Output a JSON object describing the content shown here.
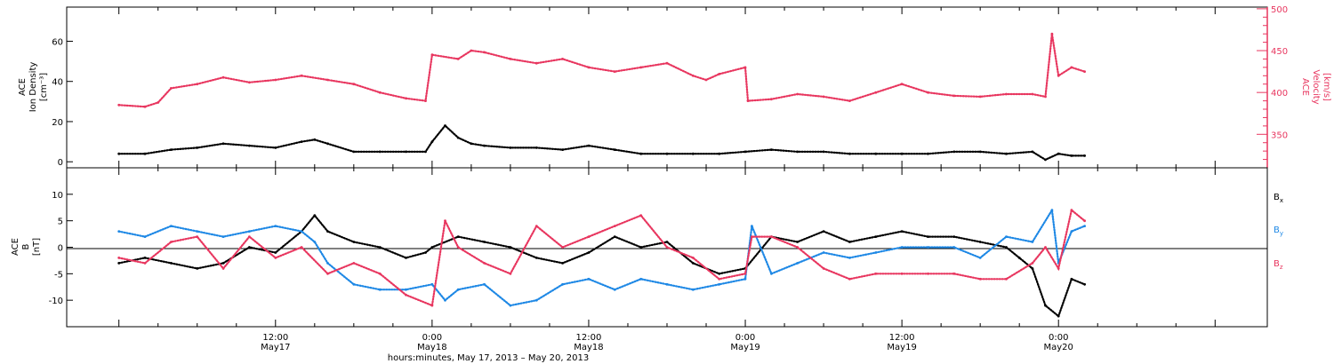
{
  "chart_data": [
    {
      "type": "scatter",
      "panel": "top",
      "left_label": [
        "ACE",
        "Ion Density",
        "[cm⁻³]"
      ],
      "right_label": [
        "ACE",
        "Velocity",
        "[km/s]"
      ],
      "ylim_left": [
        -3,
        77
      ],
      "yticks_left": [
        0,
        20,
        40,
        60
      ],
      "ylim_right": [
        310,
        502
      ],
      "yticks_right": [
        350,
        400,
        450,
        500
      ],
      "series": [
        {
          "name": "Ion Density",
          "axis": "left",
          "color": "#000000",
          "x": [
            0,
            2,
            4,
            6,
            8,
            10,
            12,
            14,
            15,
            16,
            18,
            20,
            22,
            23.5,
            24,
            25,
            26,
            27,
            28,
            30,
            32,
            34,
            36,
            38,
            40,
            42,
            44,
            46,
            48,
            50,
            52,
            54,
            56,
            58,
            60,
            62,
            64,
            66,
            68,
            70,
            71,
            72,
            73,
            74
          ],
          "y": [
            4,
            4,
            6,
            7,
            9,
            8,
            7,
            10,
            11,
            9,
            5,
            5,
            5,
            5,
            10,
            18,
            12,
            9,
            8,
            7,
            7,
            6,
            8,
            6,
            4,
            4,
            4,
            4,
            5,
            6,
            5,
            5,
            4,
            4,
            4,
            4,
            5,
            5,
            4,
            5,
            1,
            4,
            3,
            3
          ]
        },
        {
          "name": "Velocity",
          "axis": "right",
          "color": "#e8365f",
          "x": [
            0,
            2,
            3,
            4,
            6,
            8,
            10,
            12,
            14,
            16,
            18,
            20,
            22,
            23.5,
            24,
            26,
            27,
            28,
            30,
            32,
            34,
            36,
            38,
            40,
            42,
            44,
            45,
            46,
            48,
            48.2,
            50,
            52,
            54,
            56,
            58,
            60,
            62,
            64,
            66,
            68,
            70,
            71,
            71.5,
            72,
            73,
            74
          ],
          "y": [
            385,
            383,
            388,
            405,
            410,
            418,
            412,
            415,
            420,
            415,
            410,
            400,
            393,
            390,
            445,
            440,
            450,
            448,
            440,
            435,
            440,
            430,
            425,
            430,
            435,
            420,
            415,
            422,
            430,
            390,
            392,
            398,
            395,
            390,
            400,
            410,
            400,
            396,
            395,
            398,
            398,
            395,
            470,
            420,
            430,
            425
          ]
        }
      ]
    },
    {
      "type": "scatter",
      "panel": "bottom",
      "left_label": [
        "ACE",
        "B",
        "[nT]"
      ],
      "ylim": [
        -15,
        15
      ],
      "yticks": [
        -10,
        -5,
        0,
        5,
        10
      ],
      "zero_line": true,
      "series": [
        {
          "name": "B",
          "sub": "x",
          "color": "#000000",
          "x": [
            0,
            2,
            4,
            6,
            8,
            10,
            12,
            14,
            15,
            16,
            18,
            20,
            22,
            23.5,
            24,
            26,
            28,
            30,
            32,
            34,
            36,
            38,
            40,
            42,
            44,
            46,
            48,
            50,
            52,
            54,
            56,
            58,
            60,
            62,
            64,
            66,
            68,
            69,
            70,
            71,
            72,
            73,
            74
          ],
          "y": [
            -3,
            -2,
            -3,
            -4,
            -3,
            0,
            -1,
            3,
            6,
            3,
            1,
            0,
            -2,
            -1,
            0,
            2,
            1,
            0,
            -2,
            -3,
            -1,
            2,
            0,
            1,
            -3,
            -5,
            -4,
            2,
            1,
            3,
            1,
            2,
            3,
            2,
            2,
            1,
            0,
            -2,
            -4,
            -11,
            -13,
            -6,
            -7
          ]
        },
        {
          "name": "B",
          "sub": "y",
          "color": "#1e88e5",
          "x": [
            0,
            2,
            4,
            6,
            8,
            10,
            12,
            14,
            15,
            16,
            18,
            20,
            22,
            24,
            25,
            26,
            28,
            30,
            32,
            34,
            36,
            38,
            40,
            42,
            44,
            46,
            48,
            48.5,
            50,
            52,
            54,
            56,
            58,
            60,
            62,
            64,
            66,
            68,
            70,
            71.5,
            72,
            73,
            74
          ],
          "y": [
            3,
            2,
            4,
            3,
            2,
            3,
            4,
            3,
            1,
            -3,
            -7,
            -8,
            -8,
            -7,
            -10,
            -8,
            -7,
            -11,
            -10,
            -7,
            -6,
            -8,
            -6,
            -7,
            -8,
            -7,
            -6,
            4,
            -5,
            -3,
            -1,
            -2,
            -1,
            0,
            0,
            0,
            -2,
            2,
            1,
            7,
            -3,
            3,
            4
          ]
        },
        {
          "name": "B",
          "sub": "z",
          "color": "#e8365f",
          "x": [
            0,
            2,
            4,
            6,
            8,
            10,
            12,
            14,
            16,
            18,
            20,
            22,
            24,
            25,
            26,
            28,
            30,
            32,
            34,
            36,
            38,
            40,
            42,
            44,
            46,
            48,
            48.5,
            50,
            52,
            54,
            56,
            58,
            60,
            62,
            64,
            66,
            68,
            70,
            71,
            72,
            73,
            74
          ],
          "y": [
            -2,
            -3,
            1,
            2,
            -4,
            2,
            -2,
            0,
            -5,
            -3,
            -5,
            -9,
            -11,
            5,
            0,
            -3,
            -5,
            4,
            0,
            2,
            4,
            6,
            0,
            -2,
            -6,
            -5,
            2,
            2,
            0,
            -4,
            -6,
            -5,
            -5,
            -5,
            -5,
            -6,
            -6,
            -3,
            0,
            -4,
            7,
            5
          ]
        }
      ]
    }
  ],
  "x_axis": {
    "range_hours": [
      -4,
      88
    ],
    "ticks": [
      {
        "hours": 12,
        "time": "12:00",
        "date": "May17"
      },
      {
        "hours": 24,
        "time": "0:00",
        "date": "May18"
      },
      {
        "hours": 36,
        "time": "12:00",
        "date": "May18"
      },
      {
        "hours": 48,
        "time": "0:00",
        "date": "May19"
      },
      {
        "hours": 60,
        "time": "12:00",
        "date": "May19"
      },
      {
        "hours": 72,
        "time": "0:00",
        "date": "May20"
      }
    ],
    "title": "hours:minutes, May 17, 2013 – May 20, 2013"
  }
}
